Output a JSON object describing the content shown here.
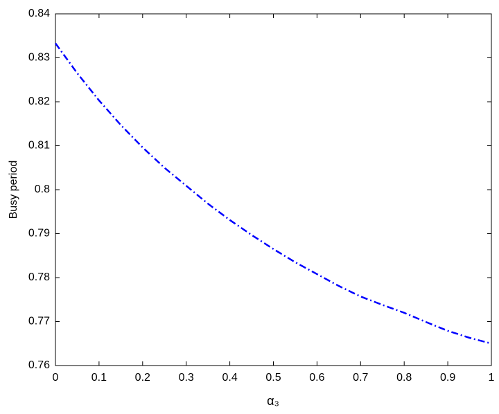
{
  "chart_data": {
    "type": "line",
    "x_label": "α₃",
    "y_label": "Busy period",
    "x": [
      0,
      0.05,
      0.1,
      0.15,
      0.2,
      0.25,
      0.3,
      0.35,
      0.4,
      0.45,
      0.5,
      0.55,
      0.6,
      0.65,
      0.7,
      0.75,
      0.8,
      0.85,
      0.9,
      0.95,
      1
    ],
    "values": [
      0.8333,
      0.8265,
      0.8203,
      0.8147,
      0.8096,
      0.805,
      0.8009,
      0.7968,
      0.7931,
      0.7897,
      0.7865,
      0.7835,
      0.7808,
      0.7781,
      0.7757,
      0.7738,
      0.772,
      0.7699,
      0.7679,
      0.7663,
      0.765
    ],
    "color": "#0000ff",
    "line_style": "dash-dot",
    "xlim": [
      0,
      1
    ],
    "xticks": [
      0,
      0.1,
      0.2,
      0.3,
      0.4,
      0.5,
      0.6,
      0.7,
      0.8,
      0.9,
      1
    ],
    "ylim": [
      0.76,
      0.84
    ],
    "yticks": [
      0.76,
      0.77,
      0.78,
      0.79,
      0.8,
      0.81,
      0.82,
      0.83,
      0.84
    ],
    "grid": false
  }
}
